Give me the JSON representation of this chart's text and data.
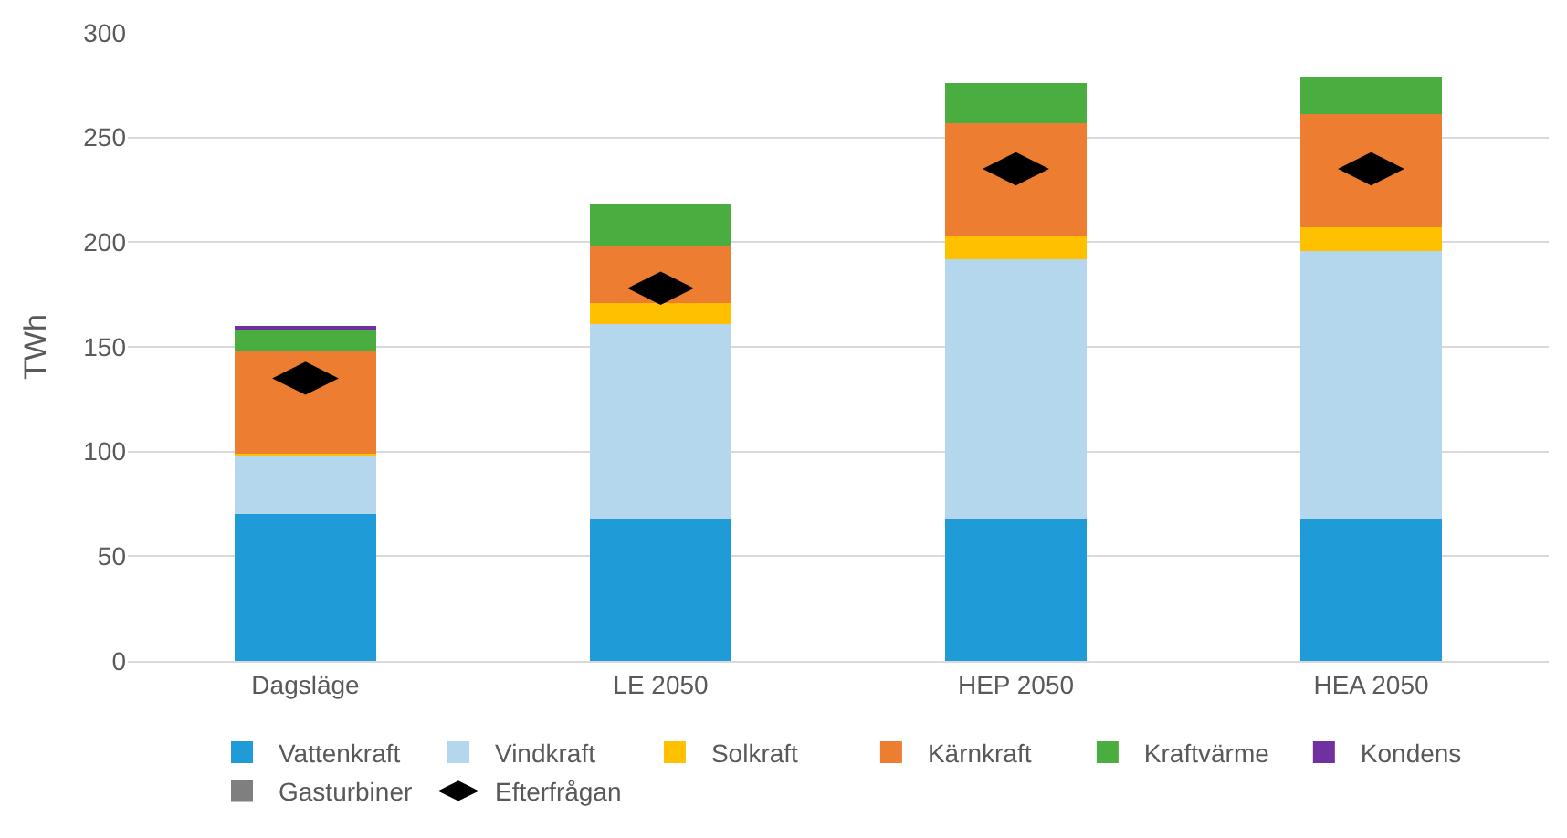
{
  "chart_data": {
    "type": "bar",
    "stacked": true,
    "ylabel": "TWh",
    "categories": [
      "Dagsläge",
      "LE 2050",
      "HEP 2050",
      "HEA 2050"
    ],
    "ylim": [
      0,
      300
    ],
    "yticks": [
      0,
      50,
      100,
      150,
      200,
      250,
      300
    ],
    "grid": "y",
    "legend": "bottom",
    "series": [
      {
        "name": "Vattenkraft",
        "color": "#1f9bd7",
        "values": [
          70,
          68,
          68,
          68
        ]
      },
      {
        "name": "Vindkraft",
        "color": "#b4d7ee",
        "values": [
          28,
          93,
          124,
          128
        ]
      },
      {
        "name": "Solkraft",
        "color": "#ffc000",
        "values": [
          1,
          10,
          11,
          11
        ]
      },
      {
        "name": "Kärnkraft",
        "color": "#ed7d31",
        "values": [
          49,
          27,
          54,
          54
        ]
      },
      {
        "name": "Kraftvärme",
        "color": "#4aad3f",
        "values": [
          10,
          20,
          19,
          18
        ]
      },
      {
        "name": "Kondens",
        "color": "#7030a0",
        "values": [
          2,
          0,
          0,
          0
        ]
      },
      {
        "name": "Gasturbiner",
        "color": "#7f7f7f",
        "values": [
          0,
          0,
          0,
          0
        ]
      },
      {
        "name": "Efterfrågan",
        "color": "#000000",
        "type": "scatter",
        "values": [
          135,
          178,
          235,
          235
        ]
      }
    ]
  }
}
